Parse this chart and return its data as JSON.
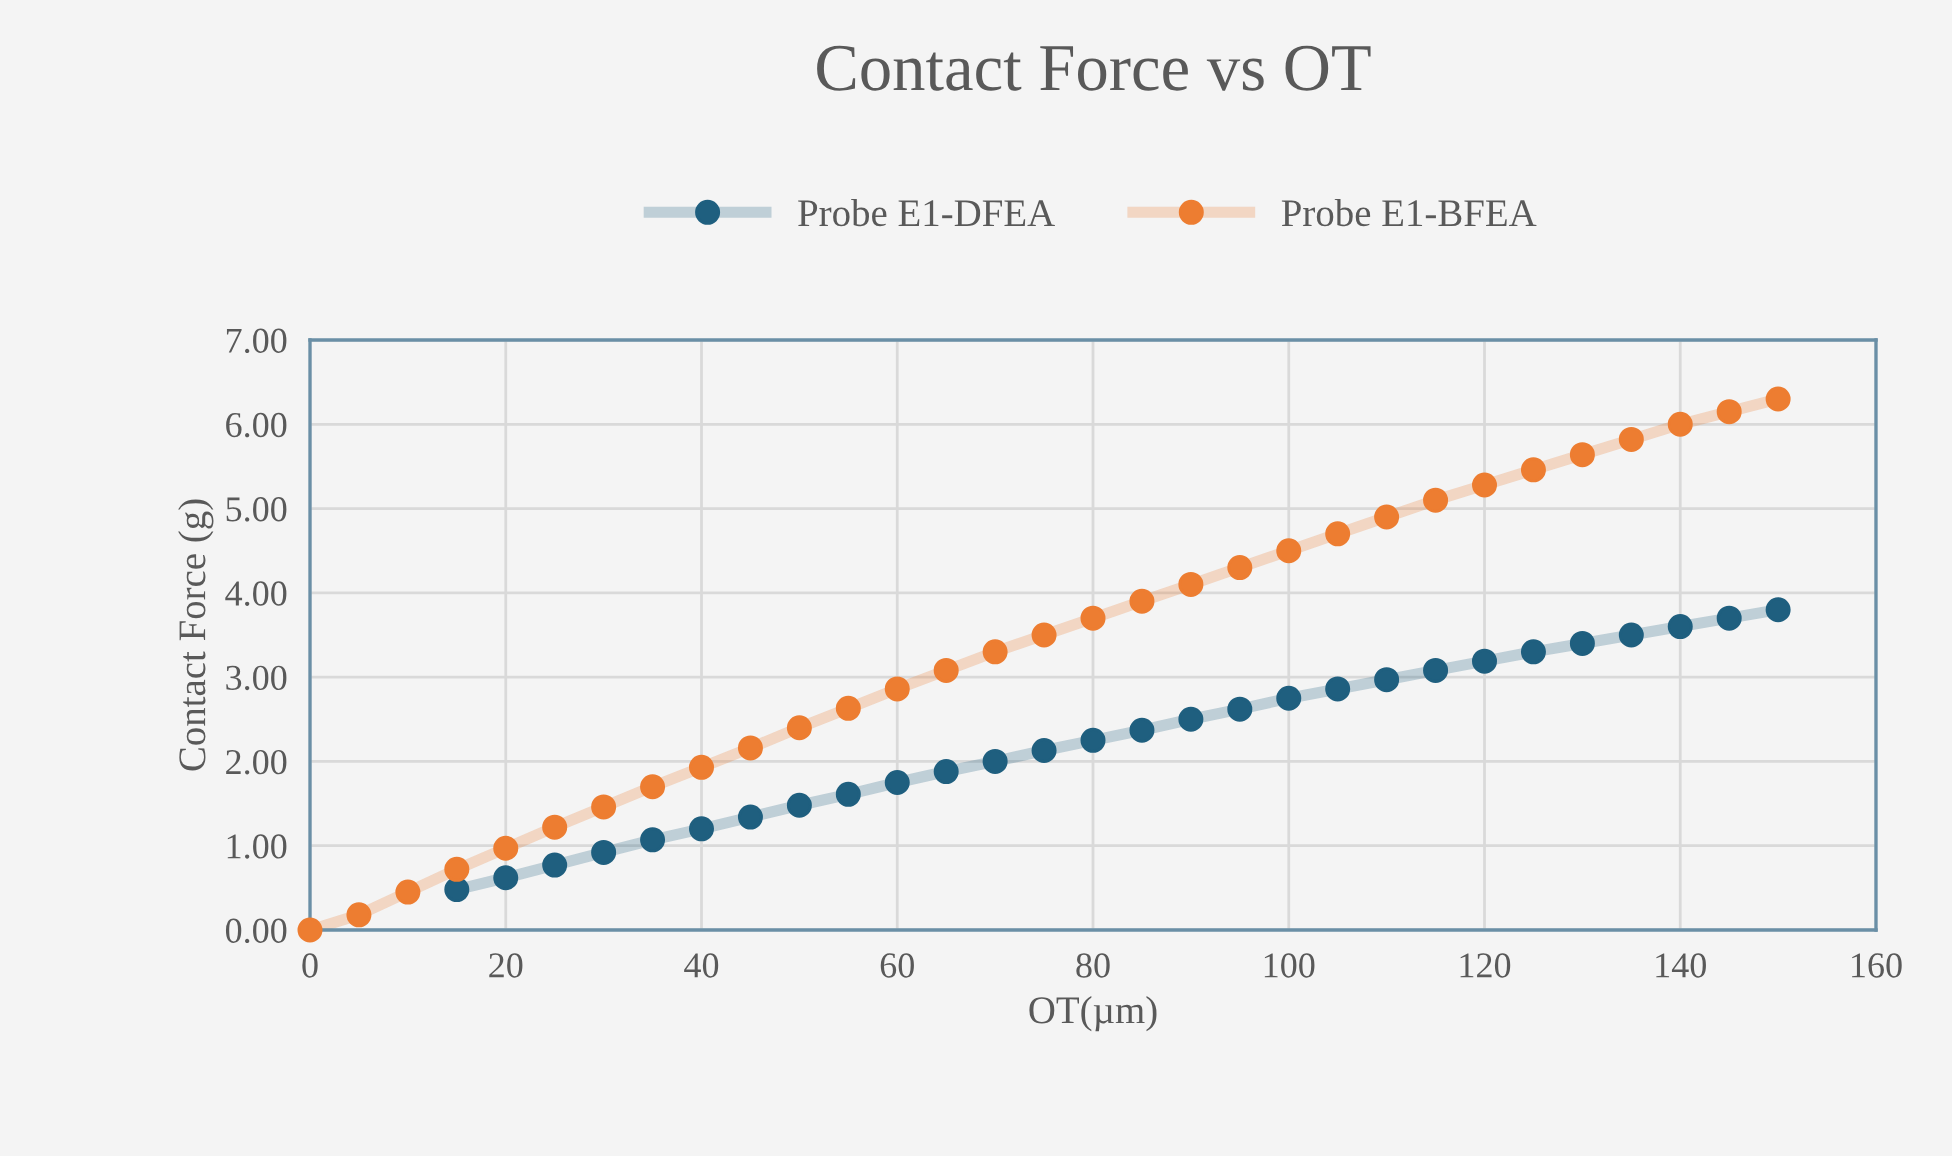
{
  "chart_data": {
    "type": "line",
    "title": "Contact Force vs OT",
    "xlabel": "OT(µm)",
    "ylabel": "Contact Force (g)",
    "xlim": [
      0,
      160
    ],
    "xticks": [
      0,
      20,
      40,
      60,
      80,
      100,
      120,
      140,
      160
    ],
    "ylim": [
      0,
      7
    ],
    "yticks": [
      {
        "value": 0,
        "label": "0.00"
      },
      {
        "value": 1,
        "label": "1.00"
      },
      {
        "value": 2,
        "label": "2.00"
      },
      {
        "value": 3,
        "label": "3.00"
      },
      {
        "value": 4,
        "label": "4.00"
      },
      {
        "value": 5,
        "label": "5.00"
      },
      {
        "value": 6,
        "label": "6.00"
      },
      {
        "value": 7,
        "label": "7.00"
      }
    ],
    "grid": true,
    "legend": "top",
    "marker": "circle",
    "line_style": "solid",
    "x": [
      0,
      5,
      10,
      15,
      20,
      25,
      30,
      35,
      40,
      45,
      50,
      55,
      60,
      65,
      70,
      75,
      80,
      85,
      90,
      95,
      100,
      105,
      110,
      115,
      120,
      125,
      130,
      135,
      140,
      145,
      150
    ],
    "series": [
      {
        "name": "Probe E1-DFEA",
        "color": "#1f5f7f",
        "values": [
          null,
          null,
          null,
          0.48,
          0.62,
          0.77,
          0.92,
          1.07,
          1.2,
          1.34,
          1.48,
          1.61,
          1.75,
          1.88,
          2.0,
          2.13,
          2.25,
          2.37,
          2.5,
          2.62,
          2.75,
          2.86,
          2.97,
          3.08,
          3.19,
          3.3,
          3.4,
          3.5,
          3.6,
          3.7,
          3.8
        ]
      },
      {
        "name": "Probe E1-BFEA",
        "color": "#ed7d31",
        "values": [
          0,
          0.18,
          0.45,
          0.72,
          0.97,
          1.22,
          1.46,
          1.7,
          1.93,
          2.16,
          2.4,
          2.63,
          2.86,
          3.08,
          3.3,
          3.5,
          3.7,
          3.9,
          4.1,
          4.3,
          4.5,
          4.7,
          4.9,
          5.1,
          5.28,
          5.46,
          5.64,
          5.82,
          6.0,
          6.15,
          6.3
        ]
      }
    ]
  }
}
